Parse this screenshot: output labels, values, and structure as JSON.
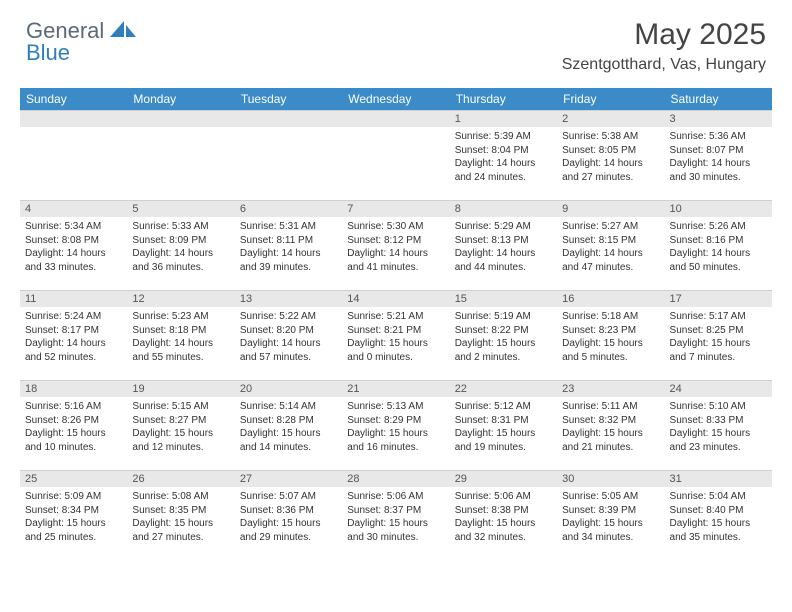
{
  "logo": {
    "part1": "General",
    "part2": "Blue"
  },
  "title": "May 2025",
  "location": "Szentgotthard, Vas, Hungary",
  "colors": {
    "header_bg": "#3b8bc8",
    "header_text": "#ffffff",
    "daynum_bg": "#e8e8e8",
    "body_bg": "#ffffff",
    "text": "#333333",
    "logo_gray": "#5a6a78",
    "logo_blue": "#2f7fbf"
  },
  "day_headers": [
    "Sunday",
    "Monday",
    "Tuesday",
    "Wednesday",
    "Thursday",
    "Friday",
    "Saturday"
  ],
  "weeks": [
    [
      null,
      null,
      null,
      null,
      {
        "n": "1",
        "sr": "5:39 AM",
        "ss": "8:04 PM",
        "dl": "14 hours and 24 minutes."
      },
      {
        "n": "2",
        "sr": "5:38 AM",
        "ss": "8:05 PM",
        "dl": "14 hours and 27 minutes."
      },
      {
        "n": "3",
        "sr": "5:36 AM",
        "ss": "8:07 PM",
        "dl": "14 hours and 30 minutes."
      }
    ],
    [
      {
        "n": "4",
        "sr": "5:34 AM",
        "ss": "8:08 PM",
        "dl": "14 hours and 33 minutes."
      },
      {
        "n": "5",
        "sr": "5:33 AM",
        "ss": "8:09 PM",
        "dl": "14 hours and 36 minutes."
      },
      {
        "n": "6",
        "sr": "5:31 AM",
        "ss": "8:11 PM",
        "dl": "14 hours and 39 minutes."
      },
      {
        "n": "7",
        "sr": "5:30 AM",
        "ss": "8:12 PM",
        "dl": "14 hours and 41 minutes."
      },
      {
        "n": "8",
        "sr": "5:29 AM",
        "ss": "8:13 PM",
        "dl": "14 hours and 44 minutes."
      },
      {
        "n": "9",
        "sr": "5:27 AM",
        "ss": "8:15 PM",
        "dl": "14 hours and 47 minutes."
      },
      {
        "n": "10",
        "sr": "5:26 AM",
        "ss": "8:16 PM",
        "dl": "14 hours and 50 minutes."
      }
    ],
    [
      {
        "n": "11",
        "sr": "5:24 AM",
        "ss": "8:17 PM",
        "dl": "14 hours and 52 minutes."
      },
      {
        "n": "12",
        "sr": "5:23 AM",
        "ss": "8:18 PM",
        "dl": "14 hours and 55 minutes."
      },
      {
        "n": "13",
        "sr": "5:22 AM",
        "ss": "8:20 PM",
        "dl": "14 hours and 57 minutes."
      },
      {
        "n": "14",
        "sr": "5:21 AM",
        "ss": "8:21 PM",
        "dl": "15 hours and 0 minutes."
      },
      {
        "n": "15",
        "sr": "5:19 AM",
        "ss": "8:22 PM",
        "dl": "15 hours and 2 minutes."
      },
      {
        "n": "16",
        "sr": "5:18 AM",
        "ss": "8:23 PM",
        "dl": "15 hours and 5 minutes."
      },
      {
        "n": "17",
        "sr": "5:17 AM",
        "ss": "8:25 PM",
        "dl": "15 hours and 7 minutes."
      }
    ],
    [
      {
        "n": "18",
        "sr": "5:16 AM",
        "ss": "8:26 PM",
        "dl": "15 hours and 10 minutes."
      },
      {
        "n": "19",
        "sr": "5:15 AM",
        "ss": "8:27 PM",
        "dl": "15 hours and 12 minutes."
      },
      {
        "n": "20",
        "sr": "5:14 AM",
        "ss": "8:28 PM",
        "dl": "15 hours and 14 minutes."
      },
      {
        "n": "21",
        "sr": "5:13 AM",
        "ss": "8:29 PM",
        "dl": "15 hours and 16 minutes."
      },
      {
        "n": "22",
        "sr": "5:12 AM",
        "ss": "8:31 PM",
        "dl": "15 hours and 19 minutes."
      },
      {
        "n": "23",
        "sr": "5:11 AM",
        "ss": "8:32 PM",
        "dl": "15 hours and 21 minutes."
      },
      {
        "n": "24",
        "sr": "5:10 AM",
        "ss": "8:33 PM",
        "dl": "15 hours and 23 minutes."
      }
    ],
    [
      {
        "n": "25",
        "sr": "5:09 AM",
        "ss": "8:34 PM",
        "dl": "15 hours and 25 minutes."
      },
      {
        "n": "26",
        "sr": "5:08 AM",
        "ss": "8:35 PM",
        "dl": "15 hours and 27 minutes."
      },
      {
        "n": "27",
        "sr": "5:07 AM",
        "ss": "8:36 PM",
        "dl": "15 hours and 29 minutes."
      },
      {
        "n": "28",
        "sr": "5:06 AM",
        "ss": "8:37 PM",
        "dl": "15 hours and 30 minutes."
      },
      {
        "n": "29",
        "sr": "5:06 AM",
        "ss": "8:38 PM",
        "dl": "15 hours and 32 minutes."
      },
      {
        "n": "30",
        "sr": "5:05 AM",
        "ss": "8:39 PM",
        "dl": "15 hours and 34 minutes."
      },
      {
        "n": "31",
        "sr": "5:04 AM",
        "ss": "8:40 PM",
        "dl": "15 hours and 35 minutes."
      }
    ]
  ],
  "labels": {
    "sunrise": "Sunrise:",
    "sunset": "Sunset:",
    "daylight": "Daylight:"
  }
}
